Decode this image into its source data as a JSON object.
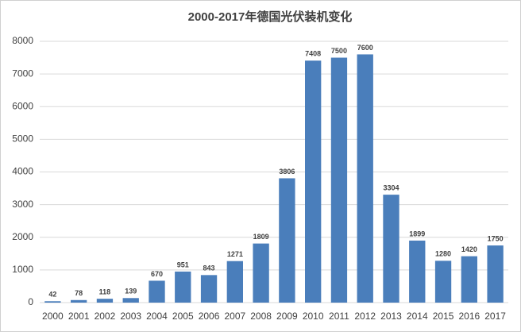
{
  "chart_data": {
    "type": "bar",
    "title": "2000-2017年德国光伏装机变化",
    "categories": [
      "2000",
      "2001",
      "2002",
      "2003",
      "2004",
      "2005",
      "2006",
      "2007",
      "2008",
      "2009",
      "2010",
      "2011",
      "2012",
      "2013",
      "2014",
      "2015",
      "2016",
      "2017"
    ],
    "values": [
      42,
      78,
      118,
      139,
      670,
      951,
      843,
      1271,
      1809,
      3806,
      7408,
      7500,
      7600,
      3304,
      1899,
      1280,
      1420,
      1750
    ],
    "color": "#4a7ebb",
    "ylim": [
      0,
      8000
    ],
    "yticks": [
      0,
      1000,
      2000,
      3000,
      4000,
      5000,
      6000,
      7000,
      8000
    ],
    "grid": true
  }
}
